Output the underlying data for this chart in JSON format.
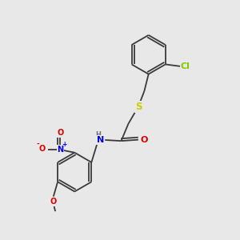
{
  "background_color": "#e8e8e8",
  "atom_colors": {
    "C": "#1a1a1a",
    "H": "#707070",
    "N": "#0000ee",
    "O": "#dd0000",
    "S": "#cccc00",
    "Cl": "#7ccc00",
    "bond": "#3a3a3a"
  },
  "bond_lw": 1.3,
  "font_size": 7.5,
  "figsize": [
    3.0,
    3.0
  ],
  "dpi": 100
}
